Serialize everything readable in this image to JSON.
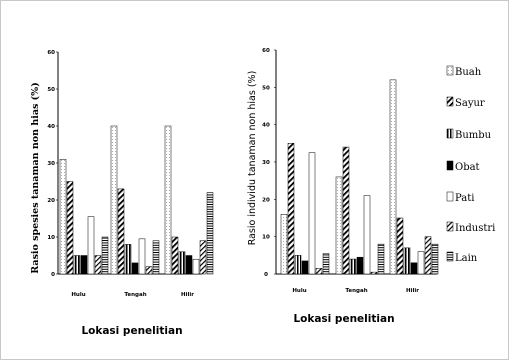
{
  "chart_data": [
    {
      "type": "bar",
      "ylabel": "Rasio spesies tanaman  non hias (%)",
      "xlabel": "Lokasi penelitian",
      "ylim": [
        0,
        60
      ],
      "yticks": [
        "0",
        "10",
        "20",
        "30",
        "40",
        "50",
        "60"
      ],
      "categories": [
        "Hulu",
        "Tengah",
        "Hilir"
      ],
      "series": [
        {
          "name": "Buah",
          "values": [
            31,
            40,
            40
          ]
        },
        {
          "name": "Sayur",
          "values": [
            25,
            23,
            10
          ]
        },
        {
          "name": "Bumbu",
          "values": [
            5,
            8,
            6
          ]
        },
        {
          "name": "Obat",
          "values": [
            5,
            3,
            5
          ]
        },
        {
          "name": "Pati",
          "values": [
            15.5,
            9.5,
            4
          ]
        },
        {
          "name": "Industri",
          "values": [
            5,
            2,
            9
          ]
        },
        {
          "name": "Lain",
          "values": [
            10,
            9,
            22
          ]
        }
      ]
    },
    {
      "type": "bar",
      "ylabel": "Rasio individu tanaman non hias (%)",
      "xlabel": "Lokasi penelitian",
      "ylim": [
        0,
        60
      ],
      "yticks": [
        "0",
        "10",
        "20",
        "30",
        "40",
        "50",
        "60"
      ],
      "categories": [
        "Hulu",
        "Tengah",
        "Hilir"
      ],
      "series": [
        {
          "name": "Buah",
          "values": [
            16,
            26,
            52
          ]
        },
        {
          "name": "Sayur",
          "values": [
            35,
            34,
            15
          ]
        },
        {
          "name": "Bumbu",
          "values": [
            5,
            4,
            7
          ]
        },
        {
          "name": "Obat",
          "values": [
            3.5,
            4.5,
            3
          ]
        },
        {
          "name": "Pati",
          "values": [
            32.5,
            21,
            6
          ]
        },
        {
          "name": "Industri",
          "values": [
            1.5,
            0.5,
            10
          ]
        },
        {
          "name": "Lain",
          "values": [
            5.5,
            8,
            8
          ]
        }
      ]
    }
  ],
  "legend": {
    "items": [
      "Buah",
      "Sayur",
      "Bumbu",
      "Obat",
      "Pati",
      "Industri",
      "Lain"
    ],
    "placement": "right"
  }
}
